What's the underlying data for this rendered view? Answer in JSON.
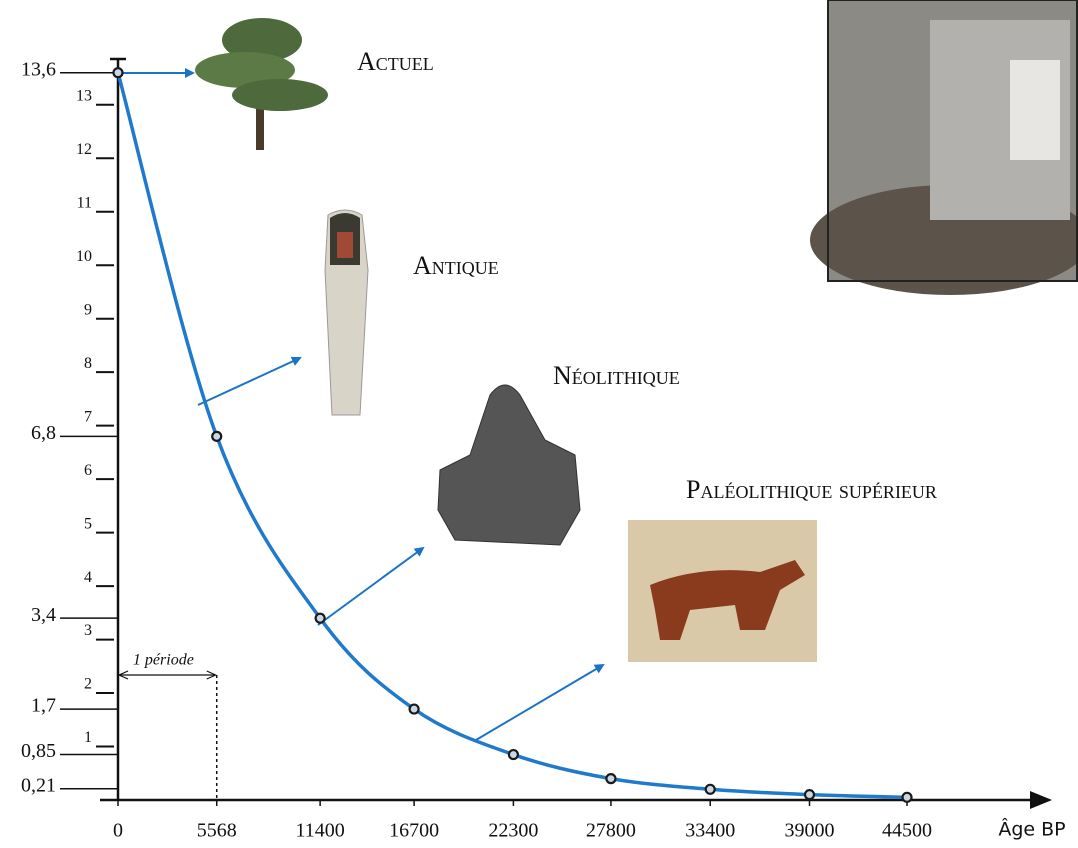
{
  "chart_data": {
    "type": "line",
    "x": [
      0,
      5568,
      11400,
      16700,
      22300,
      27800,
      33400,
      39000,
      44500
    ],
    "values": [
      13.6,
      6.8,
      3.4,
      1.7,
      0.85,
      0.4,
      0.2,
      0.1,
      0.05
    ],
    "color": "#1f7acc",
    "xlim": [
      0,
      52000
    ],
    "xticks": [
      0,
      5568,
      11400,
      16700,
      22300,
      27800,
      33400,
      39000,
      44500
    ],
    "xlabel": "Âge BP",
    "ylim": [
      0,
      13.8
    ],
    "yticks": [
      1,
      2,
      3,
      4,
      5,
      6,
      7,
      8,
      9,
      10,
      11,
      12,
      13
    ],
    "yticks_major": [
      {
        "value": 13.6,
        "label": "13,6"
      },
      {
        "value": 6.8,
        "label": "6,8"
      },
      {
        "value": 3.4,
        "label": "3,4"
      },
      {
        "value": 1.7,
        "label": "1,7"
      },
      {
        "value": 0.85,
        "label": "0,85"
      },
      {
        "value": 0.21,
        "label": "0,21"
      }
    ],
    "period": {
      "label": "1 période",
      "x": [
        0,
        5568
      ]
    },
    "annotations": [
      "Actuel",
      "Antique",
      "Néolithique",
      "Paléolithique supérieur"
    ]
  }
}
